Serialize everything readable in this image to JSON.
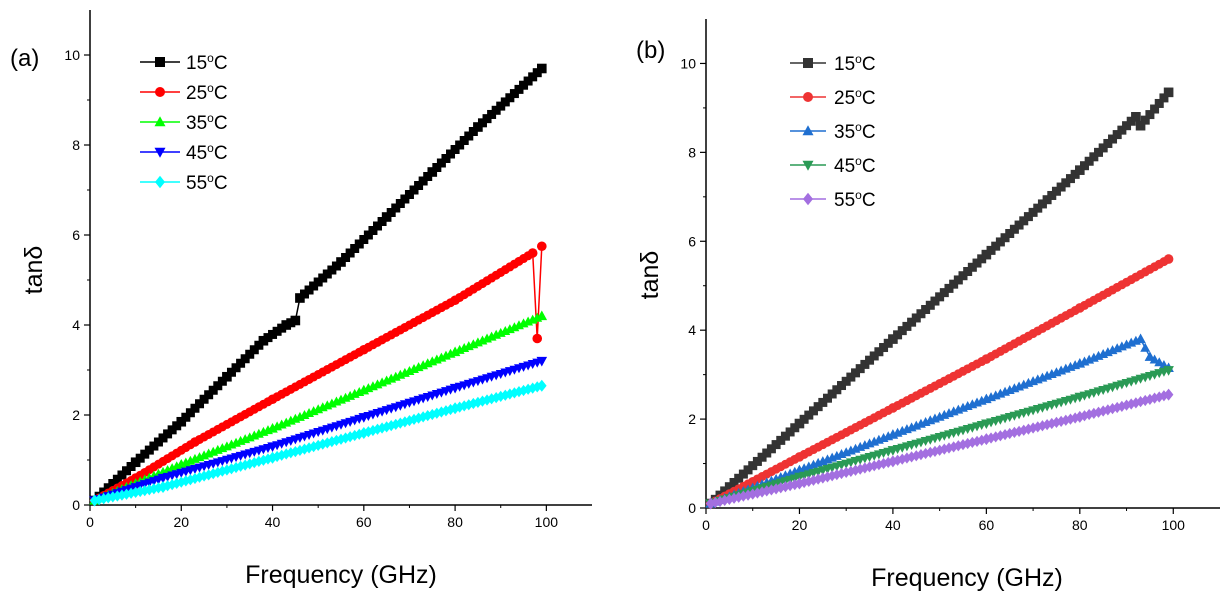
{
  "chart_data": [
    {
      "panel_label": "(a)",
      "type": "line",
      "xlabel": "Frequency (GHz)",
      "ylabel": "tanδ",
      "xlim": [
        0,
        110
      ],
      "ylim": [
        0,
        11
      ],
      "xticks": [
        0,
        20,
        40,
        60,
        80,
        100
      ],
      "yticks": [
        0,
        2,
        4,
        6,
        8,
        10
      ],
      "grid": false,
      "legend_position": "top-left",
      "series": [
        {
          "name": "15°C",
          "label_main": "15",
          "color": "#000000",
          "marker": "square",
          "points": [
            [
              1,
              0.1
            ],
            [
              10,
              0.95
            ],
            [
              20,
              1.85
            ],
            [
              30,
              2.85
            ],
            [
              38,
              3.65
            ],
            [
              43,
              4.0
            ],
            [
              45,
              4.1
            ],
            [
              46,
              4.6
            ],
            [
              55,
              5.4
            ],
            [
              65,
              6.4
            ],
            [
              75,
              7.4
            ],
            [
              85,
              8.4
            ],
            [
              99,
              9.7
            ]
          ]
        },
        {
          "name": "25°C",
          "label_main": "25",
          "color": "#ff0000",
          "marker": "circle",
          "points": [
            [
              1,
              0.1
            ],
            [
              10,
              0.6
            ],
            [
              23,
              1.4
            ],
            [
              40,
              2.35
            ],
            [
              60,
              3.45
            ],
            [
              80,
              4.55
            ],
            [
              97,
              5.6
            ],
            [
              98,
              3.7
            ],
            [
              99,
              5.75
            ]
          ]
        },
        {
          "name": "35°C",
          "label_main": "35",
          "color": "#00ff00",
          "marker": "triangle-up",
          "points": [
            [
              1,
              0.1
            ],
            [
              20,
              0.9
            ],
            [
              40,
              1.7
            ],
            [
              60,
              2.55
            ],
            [
              80,
              3.4
            ],
            [
              99,
              4.2
            ]
          ]
        },
        {
          "name": "45°C",
          "label_main": "45",
          "color": "#0000ff",
          "marker": "triangle-down",
          "points": [
            [
              1,
              0.1
            ],
            [
              16,
              0.6
            ],
            [
              40,
              1.3
            ],
            [
              60,
              1.95
            ],
            [
              80,
              2.6
            ],
            [
              99,
              3.2
            ]
          ]
        },
        {
          "name": "55°C",
          "label_main": "55",
          "color": "#00ffff",
          "marker": "diamond",
          "points": [
            [
              1,
              0.1
            ],
            [
              16,
              0.4
            ],
            [
              40,
              1.05
            ],
            [
              60,
              1.6
            ],
            [
              80,
              2.15
            ],
            [
              99,
              2.65
            ]
          ]
        }
      ]
    },
    {
      "panel_label": "(b)",
      "type": "line",
      "xlabel": "Frequency (GHz)",
      "ylabel": "tanδ",
      "xlim": [
        0,
        110
      ],
      "ylim": [
        0,
        11
      ],
      "xticks": [
        0,
        20,
        40,
        60,
        80,
        100
      ],
      "yticks": [
        0,
        2,
        4,
        6,
        8,
        10
      ],
      "grid": false,
      "legend_position": "top-left",
      "series": [
        {
          "name": "15°C",
          "label_main": "15",
          "color": "#333333",
          "marker": "square",
          "points": [
            [
              1,
              0.1
            ],
            [
              20,
              1.9
            ],
            [
              40,
              3.8
            ],
            [
              60,
              5.7
            ],
            [
              80,
              7.6
            ],
            [
              92,
              8.8
            ],
            [
              93,
              8.6
            ],
            [
              99,
              9.35
            ]
          ]
        },
        {
          "name": "25°C",
          "label_main": "25",
          "color": "#ee3333",
          "marker": "circle",
          "points": [
            [
              1,
              0.1
            ],
            [
              20,
              1.15
            ],
            [
              40,
              2.25
            ],
            [
              60,
              3.35
            ],
            [
              80,
              4.5
            ],
            [
              99,
              5.6
            ]
          ]
        },
        {
          "name": "35°C",
          "label_main": "35",
          "color": "#1f6fd0",
          "marker": "triangle-up",
          "points": [
            [
              1,
              0.1
            ],
            [
              20,
              0.85
            ],
            [
              40,
              1.65
            ],
            [
              60,
              2.45
            ],
            [
              80,
              3.25
            ],
            [
              93,
              3.8
            ],
            [
              95,
              3.4
            ],
            [
              99,
              3.15
            ]
          ]
        },
        {
          "name": "45°C",
          "label_main": "45",
          "color": "#2a9a55",
          "marker": "triangle-down",
          "points": [
            [
              1,
              0.1
            ],
            [
              20,
              0.7
            ],
            [
              40,
              1.3
            ],
            [
              60,
              1.9
            ],
            [
              80,
              2.5
            ],
            [
              99,
              3.1
            ]
          ]
        },
        {
          "name": "55°C",
          "label_main": "55",
          "color": "#a36fe0",
          "marker": "diamond",
          "points": [
            [
              1,
              0.1
            ],
            [
              20,
              0.55
            ],
            [
              40,
              1.05
            ],
            [
              60,
              1.55
            ],
            [
              80,
              2.05
            ],
            [
              99,
              2.55
            ]
          ]
        }
      ]
    }
  ]
}
